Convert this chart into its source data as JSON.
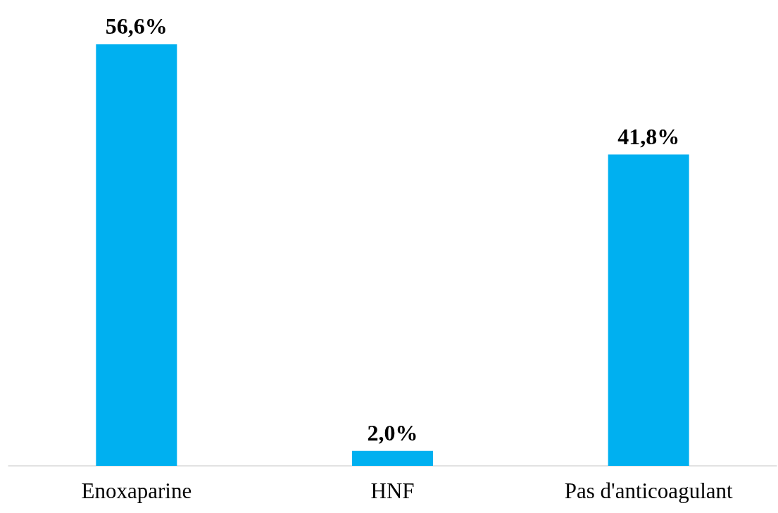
{
  "chart_data": {
    "type": "bar",
    "categories": [
      "Enoxaparine",
      "HNF",
      "Pas d'anticoagulant"
    ],
    "values": [
      56.6,
      2.0,
      41.8
    ],
    "color": "#00b0f0",
    "value_labels": [
      "56,6%",
      "2,0%",
      "41,8%"
    ]
  }
}
